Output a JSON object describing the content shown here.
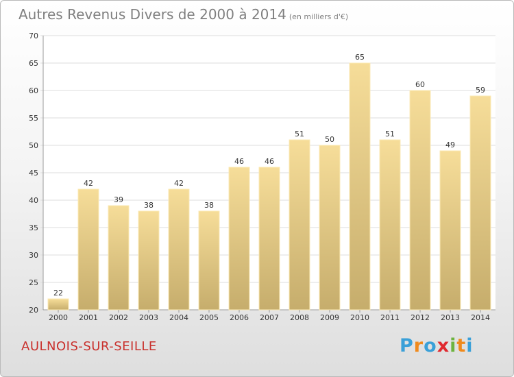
{
  "header": {
    "title": "Autres Revenus Divers de 2000 à 2014",
    "unit": "(en milliers d'€)"
  },
  "footer": {
    "commune": "AULNOIS-SUR-SEILLE",
    "logo": "Proxiti"
  },
  "colors": {
    "bar_top": "#f6dd99",
    "bar_bottom": "#c6ad6c",
    "bar_border": "#fbe9b3",
    "grid": "#dcdcdc",
    "commune": "#c9302c",
    "logo_letters": [
      "#3aa0d8",
      "#f08a1c",
      "#3aa0d8",
      "#e0282e",
      "#6db33f",
      "#f08a1c",
      "#3aa0d8"
    ]
  },
  "chart_data": {
    "type": "bar",
    "categories": [
      "2000",
      "2001",
      "2002",
      "2003",
      "2004",
      "2005",
      "2006",
      "2007",
      "2008",
      "2009",
      "2010",
      "2011",
      "2012",
      "2013",
      "2014"
    ],
    "values": [
      22,
      42,
      39,
      38,
      42,
      38,
      46,
      46,
      51,
      50,
      65,
      51,
      60,
      49,
      59
    ],
    "data_labels": [
      "22",
      "42",
      "39",
      "38",
      "42",
      "38",
      "46",
      "46",
      "51",
      "50",
      "65",
      "51",
      "60",
      "49",
      "59"
    ],
    "ylim": [
      20,
      70
    ],
    "yticks": [
      20,
      25,
      30,
      35,
      40,
      45,
      50,
      55,
      60,
      65,
      70
    ],
    "grid": true,
    "legend": "none"
  }
}
